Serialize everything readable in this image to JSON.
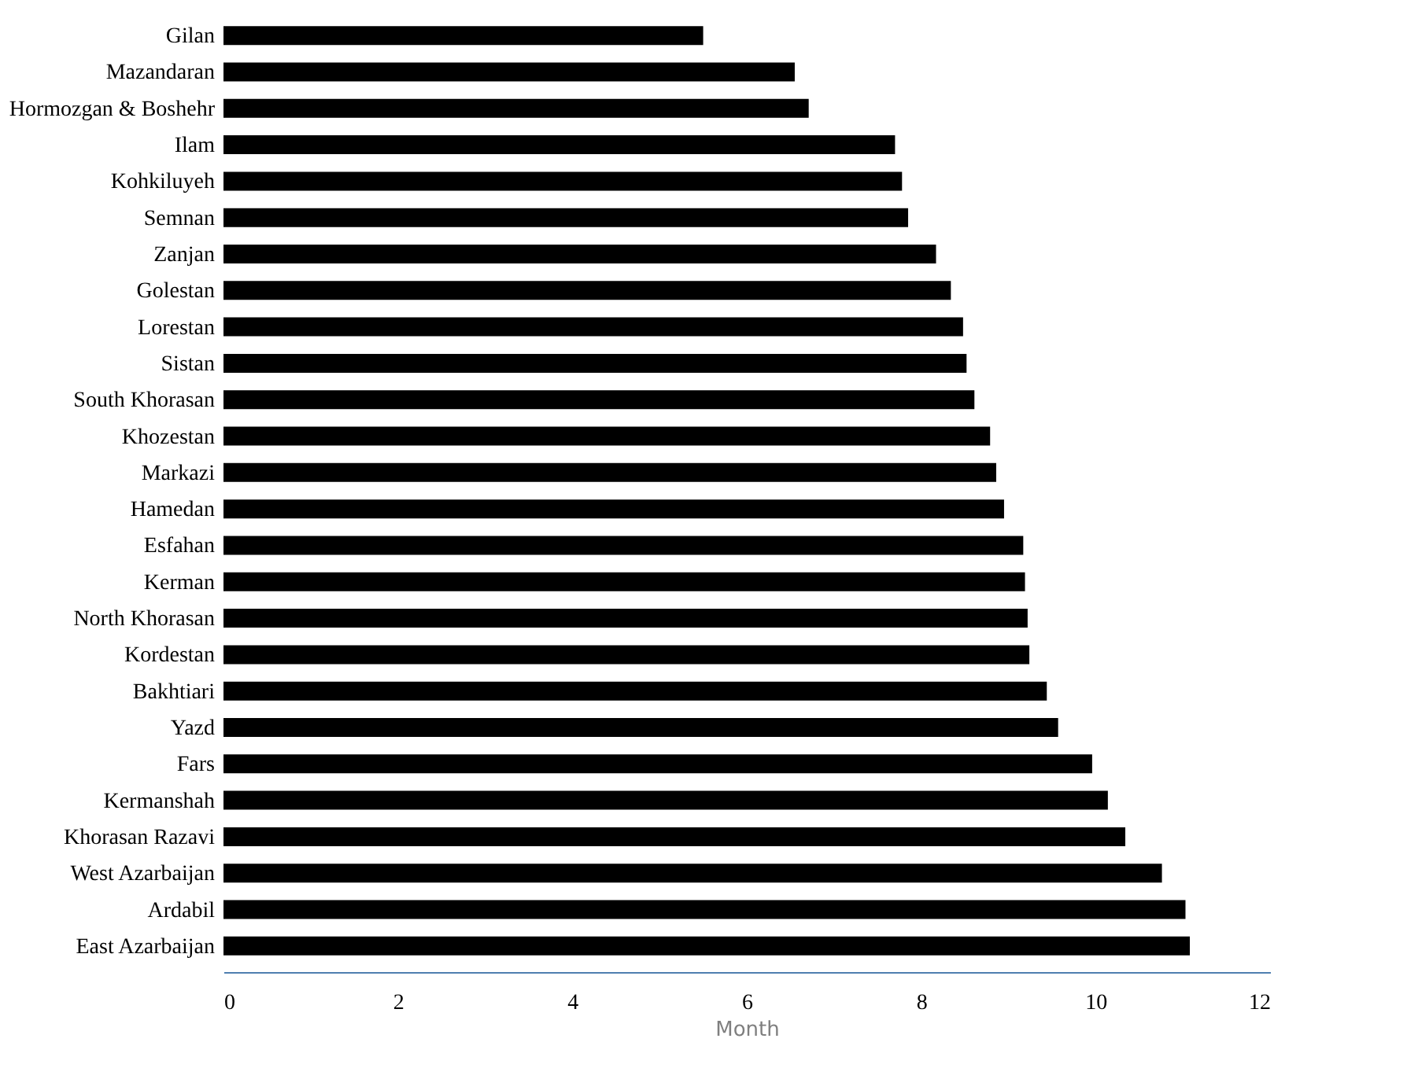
{
  "chart_data": {
    "type": "bar",
    "orientation": "horizontal",
    "xlabel": "Month",
    "categories": [
      "Gilan",
      "Mazandaran",
      "Hormozgan & Boshehr",
      "Ilam",
      "Kohkiluyeh",
      "Semnan",
      "Zanjan",
      "Golestan",
      "Lorestan",
      "Sistan",
      "South Khorasan",
      "Khozestan",
      "Markazi",
      "Hamedan",
      "Esfahan",
      "Kerman",
      "North Khorasan",
      "Kordestan",
      "Bakhtiari",
      "Yazd",
      "Fars",
      "Kermanshah",
      "Khorasan Razavi",
      "West Azarbaijan",
      "Ardabil",
      "East Azarbaijan"
    ],
    "values": [
      5.5,
      6.55,
      6.71,
      7.7,
      7.78,
      7.85,
      8.17,
      8.34,
      8.48,
      8.52,
      8.61,
      8.79,
      8.86,
      8.95,
      9.17,
      9.19,
      9.22,
      9.24,
      9.44,
      9.57,
      9.96,
      10.14,
      10.34,
      10.76,
      11.03,
      11.08
    ],
    "color": "#000000",
    "xlim": [
      0,
      12
    ],
    "xticks": [
      0,
      2,
      4,
      6,
      8,
      10,
      12
    ],
    "grid": false
  }
}
